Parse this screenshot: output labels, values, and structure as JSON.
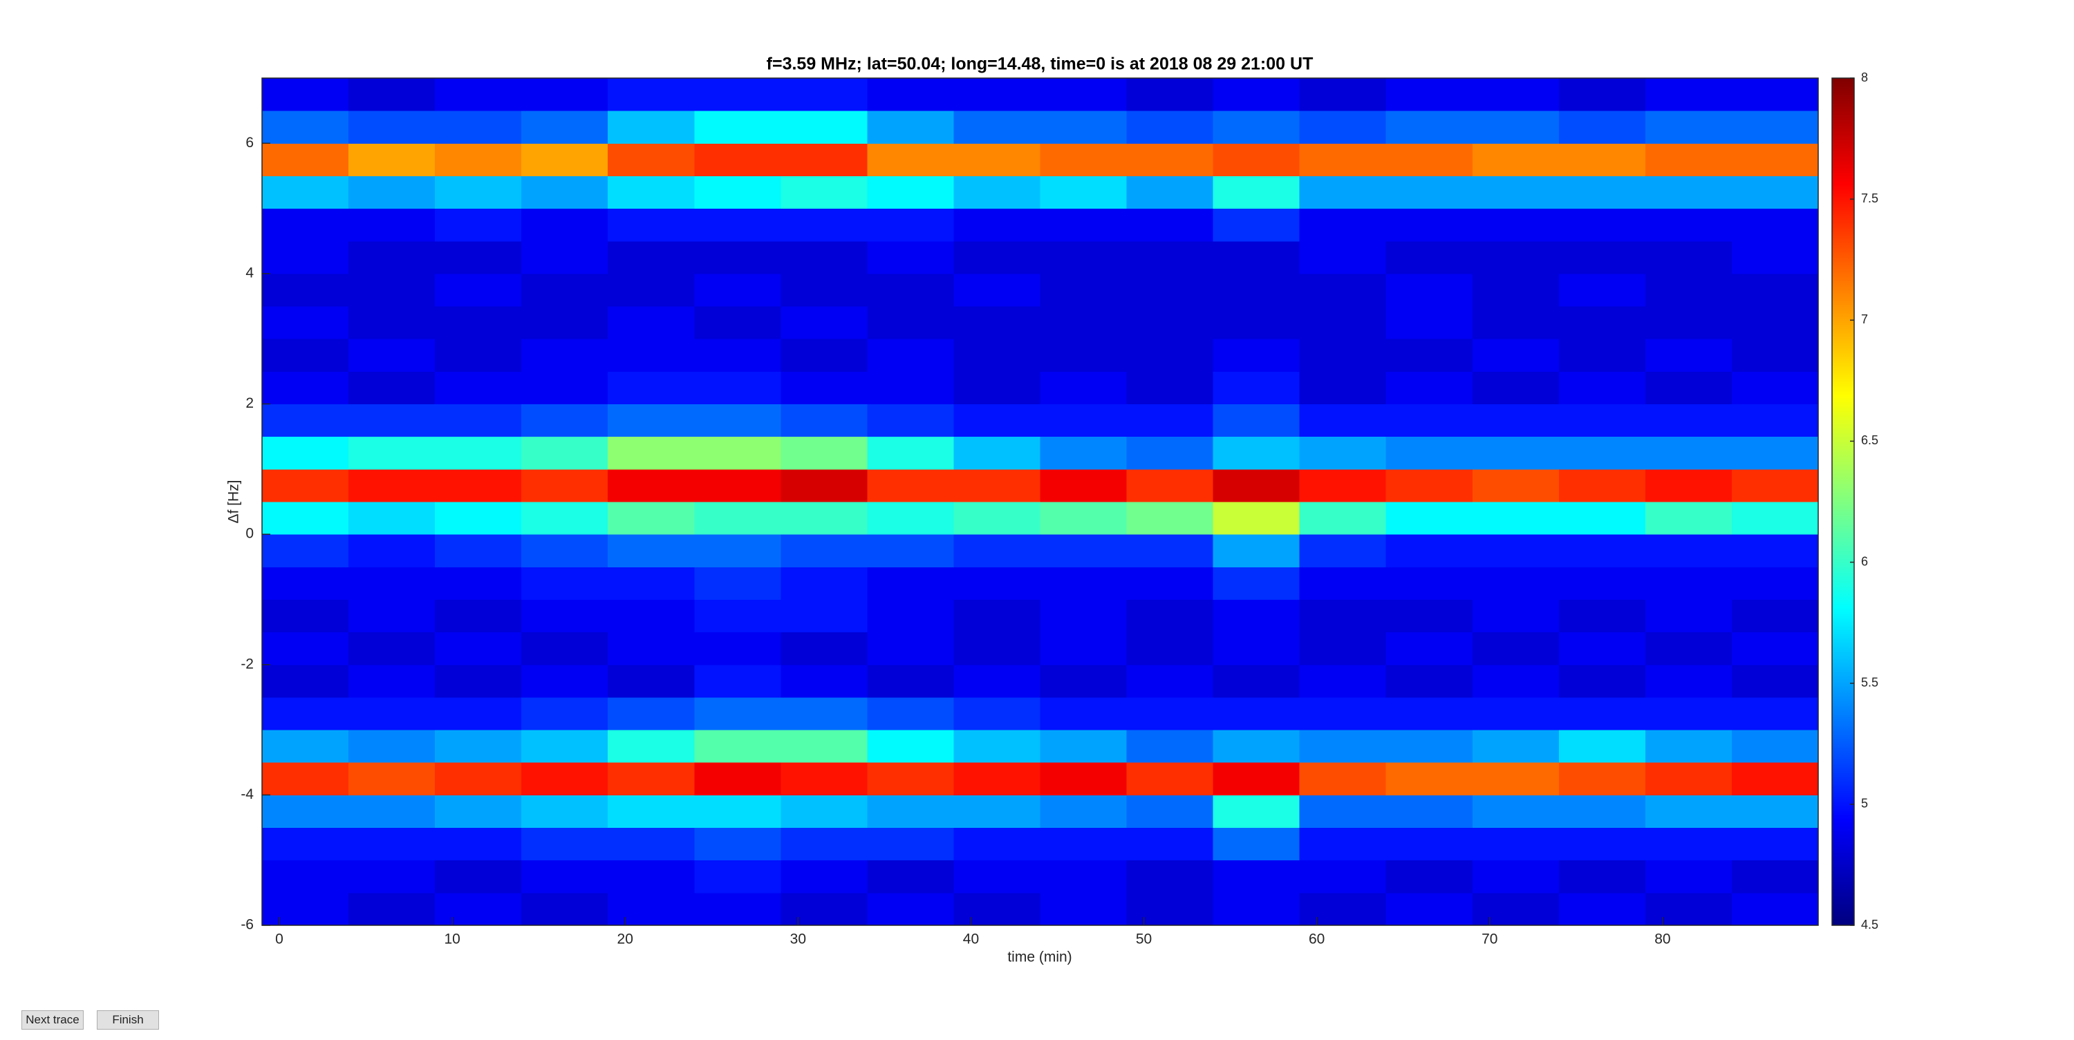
{
  "chart_data": {
    "type": "heatmap",
    "title": "f=3.59 MHz;  lat=50.04; long=14.48, time=0 is at 2018 08 29 21:00 UT",
    "x_label": "time (min)",
    "y_label": "Δf [Hz]",
    "colormap": "jet",
    "xlim": [
      -1,
      89
    ],
    "ylim": [
      -6,
      7
    ],
    "xticks": [
      0,
      10,
      20,
      30,
      40,
      50,
      60,
      70,
      80
    ],
    "yticks": [
      -6,
      -4,
      -2,
      0,
      2,
      4,
      6
    ],
    "clim": [
      4.5,
      8
    ],
    "cticks": [
      4.5,
      5,
      5.5,
      6,
      6.5,
      7,
      7.5,
      8
    ],
    "x": [
      1.5,
      6.5,
      11.5,
      16.5,
      21.5,
      26.5,
      31.5,
      36.5,
      41.5,
      46.5,
      51.5,
      56.5,
      61.5,
      66.5,
      71.5,
      76.5,
      81.5,
      86.5
    ],
    "y": [
      -5.75,
      -5.25,
      -4.75,
      -4.25,
      -3.75,
      -3.25,
      -2.75,
      -2.25,
      -1.75,
      -1.25,
      -0.75,
      -0.25,
      0.25,
      0.75,
      1.25,
      1.75,
      2.25,
      2.75,
      3.25,
      3.75,
      4.25,
      4.75,
      5.25,
      5.75,
      6.25,
      6.75
    ],
    "z": [
      [
        4.9,
        4.8,
        4.9,
        4.8,
        4.9,
        4.9,
        4.8,
        4.9,
        4.8,
        4.9,
        4.8,
        4.9,
        4.8,
        4.9,
        4.8,
        4.9,
        4.8,
        4.9
      ],
      [
        4.9,
        4.9,
        4.8,
        4.9,
        4.9,
        5.0,
        4.9,
        4.8,
        4.9,
        4.9,
        4.8,
        4.9,
        4.9,
        4.8,
        4.9,
        4.8,
        4.9,
        4.8
      ],
      [
        5.0,
        5.0,
        5.0,
        5.1,
        5.1,
        5.2,
        5.1,
        5.1,
        5.0,
        5.0,
        5.0,
        5.3,
        5.0,
        5.0,
        5.0,
        5.0,
        5.0,
        5.0
      ],
      [
        5.4,
        5.4,
        5.5,
        5.6,
        5.7,
        5.7,
        5.6,
        5.5,
        5.5,
        5.4,
        5.3,
        5.9,
        5.3,
        5.3,
        5.4,
        5.4,
        5.5,
        5.5
      ],
      [
        7.4,
        7.3,
        7.4,
        7.5,
        7.4,
        7.6,
        7.5,
        7.4,
        7.5,
        7.6,
        7.4,
        7.6,
        7.3,
        7.2,
        7.2,
        7.3,
        7.4,
        7.5
      ],
      [
        5.5,
        5.4,
        5.5,
        5.6,
        5.9,
        6.1,
        6.1,
        5.8,
        5.6,
        5.5,
        5.3,
        5.5,
        5.4,
        5.4,
        5.5,
        5.7,
        5.5,
        5.4
      ],
      [
        5.0,
        5.0,
        5.0,
        5.1,
        5.2,
        5.3,
        5.3,
        5.2,
        5.1,
        5.0,
        5.0,
        5.0,
        5.0,
        5.0,
        5.0,
        5.0,
        5.0,
        5.0
      ],
      [
        4.8,
        4.9,
        4.8,
        4.9,
        4.8,
        5.0,
        4.9,
        4.8,
        4.9,
        4.8,
        4.9,
        4.8,
        4.9,
        4.8,
        4.9,
        4.8,
        4.9,
        4.8
      ],
      [
        4.9,
        4.8,
        4.9,
        4.8,
        4.9,
        4.9,
        4.8,
        4.9,
        4.8,
        4.9,
        4.8,
        4.9,
        4.8,
        4.9,
        4.8,
        4.9,
        4.8,
        4.9
      ],
      [
        4.8,
        4.9,
        4.8,
        4.9,
        4.9,
        5.0,
        5.0,
        4.9,
        4.8,
        4.9,
        4.8,
        4.9,
        4.8,
        4.8,
        4.9,
        4.8,
        4.9,
        4.8
      ],
      [
        4.9,
        4.9,
        4.9,
        5.0,
        5.0,
        5.1,
        5.0,
        4.9,
        4.9,
        4.9,
        4.9,
        5.1,
        4.9,
        4.9,
        4.9,
        4.9,
        4.9,
        4.9
      ],
      [
        5.1,
        5.0,
        5.1,
        5.2,
        5.3,
        5.3,
        5.2,
        5.2,
        5.1,
        5.1,
        5.1,
        5.5,
        5.1,
        5.0,
        5.0,
        5.0,
        5.0,
        5.0
      ],
      [
        5.8,
        5.7,
        5.8,
        5.9,
        6.1,
        6.0,
        6.0,
        5.9,
        6.0,
        6.1,
        6.2,
        6.5,
        6.0,
        5.8,
        5.8,
        5.8,
        6.0,
        5.9
      ],
      [
        7.4,
        7.5,
        7.5,
        7.4,
        7.6,
        7.6,
        7.7,
        7.4,
        7.4,
        7.6,
        7.4,
        7.7,
        7.5,
        7.4,
        7.3,
        7.4,
        7.5,
        7.4
      ],
      [
        5.8,
        5.9,
        5.9,
        6.0,
        6.3,
        6.3,
        6.2,
        5.9,
        5.6,
        5.4,
        5.3,
        5.6,
        5.5,
        5.4,
        5.4,
        5.4,
        5.4,
        5.4
      ],
      [
        5.1,
        5.1,
        5.1,
        5.2,
        5.3,
        5.3,
        5.2,
        5.1,
        5.0,
        5.0,
        5.0,
        5.2,
        5.0,
        5.0,
        5.0,
        5.0,
        5.0,
        5.0
      ],
      [
        4.9,
        4.8,
        4.9,
        4.9,
        5.0,
        5.0,
        4.9,
        4.9,
        4.8,
        4.9,
        4.8,
        5.0,
        4.8,
        4.9,
        4.8,
        4.9,
        4.8,
        4.9
      ],
      [
        4.8,
        4.9,
        4.8,
        4.9,
        4.9,
        4.9,
        4.8,
        4.9,
        4.8,
        4.8,
        4.8,
        4.9,
        4.8,
        4.8,
        4.9,
        4.8,
        4.9,
        4.8
      ],
      [
        4.9,
        4.8,
        4.8,
        4.8,
        4.9,
        4.8,
        4.9,
        4.8,
        4.8,
        4.8,
        4.8,
        4.8,
        4.8,
        4.9,
        4.8,
        4.8,
        4.8,
        4.8
      ],
      [
        4.8,
        4.8,
        4.9,
        4.8,
        4.8,
        4.9,
        4.8,
        4.8,
        4.9,
        4.8,
        4.8,
        4.8,
        4.8,
        4.9,
        4.8,
        4.9,
        4.8,
        4.8
      ],
      [
        4.9,
        4.8,
        4.8,
        4.9,
        4.8,
        4.8,
        4.8,
        4.9,
        4.8,
        4.8,
        4.8,
        4.8,
        4.9,
        4.8,
        4.8,
        4.8,
        4.8,
        4.9
      ],
      [
        4.9,
        4.9,
        5.0,
        4.9,
        5.0,
        5.0,
        5.0,
        5.0,
        4.9,
        4.9,
        4.9,
        5.1,
        4.9,
        4.9,
        4.9,
        4.9,
        4.9,
        4.9
      ],
      [
        5.6,
        5.5,
        5.6,
        5.5,
        5.7,
        5.8,
        5.9,
        5.8,
        5.6,
        5.7,
        5.5,
        5.9,
        5.5,
        5.5,
        5.5,
        5.5,
        5.5,
        5.5
      ],
      [
        7.2,
        7.0,
        7.1,
        7.0,
        7.3,
        7.4,
        7.4,
        7.1,
        7.1,
        7.2,
        7.2,
        7.3,
        7.2,
        7.2,
        7.1,
        7.1,
        7.2,
        7.2
      ],
      [
        5.3,
        5.2,
        5.2,
        5.3,
        5.6,
        5.8,
        5.8,
        5.5,
        5.3,
        5.3,
        5.2,
        5.3,
        5.2,
        5.3,
        5.3,
        5.2,
        5.3,
        5.3
      ],
      [
        4.9,
        4.8,
        4.9,
        4.9,
        5.0,
        5.0,
        5.0,
        4.9,
        4.9,
        4.9,
        4.8,
        4.9,
        4.8,
        4.9,
        4.9,
        4.8,
        4.9,
        4.9
      ]
    ]
  },
  "buttons": [
    "Next trace",
    "Finish"
  ]
}
